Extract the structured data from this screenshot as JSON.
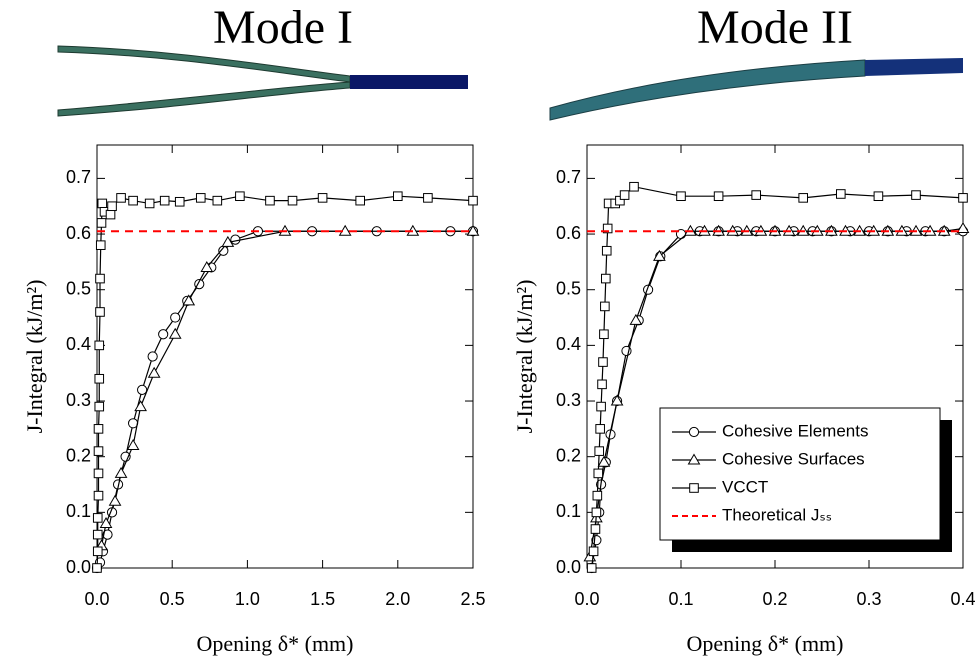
{
  "chart_data": [
    {
      "type": "line",
      "title": "Mode I",
      "x_label": "Opening δ* (mm)",
      "y_label": "J-Integral (kJ/m²)",
      "xlim": [
        0,
        2.5
      ],
      "ylim": [
        0,
        0.76
      ],
      "xticks": [
        {
          "value": 0,
          "label": "0.0"
        },
        {
          "value": 0.5,
          "label": "0.5"
        },
        {
          "value": 1,
          "label": "1.0"
        },
        {
          "value": 1.5,
          "label": "1.5"
        },
        {
          "value": 2,
          "label": "2.0"
        },
        {
          "value": 2.5,
          "label": "2.5"
        }
      ],
      "yticks": [
        {
          "value": 0,
          "label": "0.0"
        },
        {
          "value": 0.1,
          "label": "0.1"
        },
        {
          "value": 0.2,
          "label": "0.2"
        },
        {
          "value": 0.3,
          "label": "0.3"
        },
        {
          "value": 0.4,
          "label": "0.4"
        },
        {
          "value": 0.5,
          "label": "0.5"
        },
        {
          "value": 0.6,
          "label": "0.6"
        },
        {
          "value": 0.7,
          "label": "0.7"
        }
      ],
      "series": [
        {
          "name": "Cohesive Elements",
          "color": "#000000",
          "marker": "o",
          "x": [
            0,
            0.02,
            0.04,
            0.07,
            0.1,
            0.14,
            0.19,
            0.24,
            0.3,
            0.37,
            0.44,
            0.52,
            0.6,
            0.68,
            0.76,
            0.84,
            0.92,
            1.07,
            1.43,
            1.86,
            2.35,
            2.5
          ],
          "values": [
            0,
            0.01,
            0.03,
            0.06,
            0.1,
            0.15,
            0.2,
            0.26,
            0.32,
            0.38,
            0.42,
            0.45,
            0.48,
            0.51,
            0.54,
            0.57,
            0.59,
            0.605,
            0.605,
            0.605,
            0.605,
            0.605
          ]
        },
        {
          "name": "Cohesive Surfaces",
          "color": "#000000",
          "marker": "^",
          "x": [
            0.03,
            0.06,
            0.12,
            0.16,
            0.24,
            0.29,
            0.38,
            0.52,
            0.61,
            0.73,
            0.87,
            1.25,
            1.65,
            2.1,
            2.5
          ],
          "values": [
            0.04,
            0.08,
            0.12,
            0.17,
            0.22,
            0.29,
            0.35,
            0.42,
            0.48,
            0.54,
            0.585,
            0.605,
            0.605,
            0.605,
            0.605
          ]
        },
        {
          "name": "VCCT",
          "color": "#000000",
          "marker": "s",
          "x": [
            0,
            0.005,
            0.005,
            0.005,
            0.01,
            0.01,
            0.01,
            0.01,
            0.015,
            0.015,
            0.015,
            0.02,
            0.02,
            0.025,
            0.03,
            0.035,
            0.05,
            0.09,
            0.1,
            0.16,
            0.24,
            0.35,
            0.45,
            0.55,
            0.69,
            0.8,
            0.95,
            1.15,
            1.3,
            1.5,
            1.75,
            2,
            2.2,
            2.5
          ],
          "values": [
            0,
            0.03,
            0.06,
            0.09,
            0.13,
            0.17,
            0.21,
            0.25,
            0.29,
            0.34,
            0.4,
            0.46,
            0.52,
            0.58,
            0.62,
            0.655,
            0.64,
            0.635,
            0.65,
            0.665,
            0.66,
            0.655,
            0.66,
            0.658,
            0.665,
            0.66,
            0.668,
            0.66,
            0.66,
            0.665,
            0.66,
            0.668,
            0.665,
            0.66
          ]
        },
        {
          "name": "Theoretical Jₛₛ",
          "color": "#ff0000",
          "linestyle": "--",
          "x": [
            0,
            2.5
          ],
          "values": [
            0.605,
            0.605
          ]
        }
      ]
    },
    {
      "type": "line",
      "title": "Mode II",
      "x_label": "Opening δ* (mm)",
      "y_label": "J-Integral (kJ/m²)",
      "xlim": [
        0,
        0.4
      ],
      "ylim": [
        0,
        0.76
      ],
      "legend": "lower right",
      "xticks": [
        {
          "value": 0,
          "label": "0.0"
        },
        {
          "value": 0.1,
          "label": "0.1"
        },
        {
          "value": 0.2,
          "label": "0.2"
        },
        {
          "value": 0.3,
          "label": "0.3"
        },
        {
          "value": 0.4,
          "label": "0.4"
        }
      ],
      "yticks": [
        {
          "value": 0,
          "label": "0.0"
        },
        {
          "value": 0.1,
          "label": "0.1"
        },
        {
          "value": 0.2,
          "label": "0.2"
        },
        {
          "value": 0.3,
          "label": "0.3"
        },
        {
          "value": 0.4,
          "label": "0.4"
        },
        {
          "value": 0.5,
          "label": "0.5"
        },
        {
          "value": 0.6,
          "label": "0.6"
        },
        {
          "value": 0.7,
          "label": "0.7"
        }
      ],
      "series": [
        {
          "name": "Cohesive Elements",
          "color": "#000000",
          "marker": "o",
          "x": [
            0.005,
            0.01,
            0.013,
            0.015,
            0.02,
            0.025,
            0.032,
            0.042,
            0.055,
            0.065,
            0.078,
            0.1,
            0.12,
            0.14,
            0.16,
            0.18,
            0.2,
            0.22,
            0.24,
            0.26,
            0.28,
            0.3,
            0.32,
            0.34,
            0.36,
            0.38,
            0.4
          ],
          "values": [
            0,
            0.05,
            0.1,
            0.15,
            0.19,
            0.24,
            0.3,
            0.39,
            0.445,
            0.5,
            0.56,
            0.6,
            0.605,
            0.605,
            0.605,
            0.605,
            0.605,
            0.605,
            0.605,
            0.605,
            0.605,
            0.605,
            0.605,
            0.605,
            0.605,
            0.605,
            0.605
          ]
        },
        {
          "name": "Cohesive Surfaces",
          "color": "#000000",
          "marker": "^",
          "x": [
            0.003,
            0.01,
            0.018,
            0.032,
            0.052,
            0.077,
            0.11,
            0.125,
            0.14,
            0.155,
            0.17,
            0.185,
            0.2,
            0.215,
            0.23,
            0.245,
            0.26,
            0.275,
            0.29,
            0.305,
            0.32,
            0.335,
            0.35,
            0.365,
            0.38,
            0.4
          ],
          "values": [
            0.02,
            0.09,
            0.19,
            0.3,
            0.445,
            0.56,
            0.605,
            0.605,
            0.605,
            0.605,
            0.605,
            0.605,
            0.605,
            0.605,
            0.605,
            0.605,
            0.605,
            0.605,
            0.605,
            0.605,
            0.605,
            0.605,
            0.605,
            0.605,
            0.605,
            0.61
          ]
        },
        {
          "name": "VCCT",
          "color": "#000000",
          "marker": "s",
          "x": [
            0.005,
            0.007,
            0.009,
            0.01,
            0.011,
            0.012,
            0.013,
            0.014,
            0.015,
            0.016,
            0.017,
            0.018,
            0.019,
            0.02,
            0.021,
            0.022,
            0.023,
            0.03,
            0.035,
            0.04,
            0.05,
            0.1,
            0.14,
            0.18,
            0.23,
            0.27,
            0.31,
            0.35,
            0.4
          ],
          "values": [
            0,
            0.03,
            0.07,
            0.1,
            0.13,
            0.17,
            0.21,
            0.25,
            0.29,
            0.33,
            0.37,
            0.42,
            0.47,
            0.52,
            0.57,
            0.61,
            0.655,
            0.655,
            0.66,
            0.67,
            0.685,
            0.668,
            0.668,
            0.67,
            0.665,
            0.672,
            0.668,
            0.67,
            0.665
          ]
        },
        {
          "name": "Theoretical Jₛₛ",
          "color": "#ff0000",
          "linestyle": "--",
          "x": [
            0,
            0.4
          ],
          "values": [
            0.605,
            0.605
          ]
        }
      ]
    }
  ]
}
